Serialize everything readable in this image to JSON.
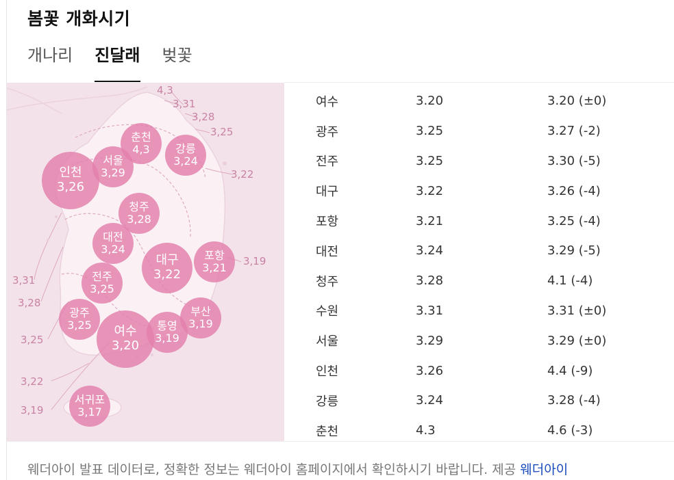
{
  "title": "봄꽃 개화시기",
  "tabs": [
    {
      "label": "개나리",
      "active": false
    },
    {
      "label": "진달래",
      "active": true
    },
    {
      "label": "벚꽃",
      "active": false
    }
  ],
  "map": {
    "background_color": "#f4e2ea",
    "bubble_color": "#e37fac",
    "bubbles": [
      {
        "name": "춘천",
        "date": "4,3"
      },
      {
        "name": "강릉",
        "date": "3,24"
      },
      {
        "name": "인천",
        "date": "3,26"
      },
      {
        "name": "서울",
        "date": "3,29"
      },
      {
        "name": "청주",
        "date": "3,28"
      },
      {
        "name": "대전",
        "date": "3,24"
      },
      {
        "name": "대구",
        "date": "3,22"
      },
      {
        "name": "포항",
        "date": "3,21"
      },
      {
        "name": "전주",
        "date": "3,25"
      },
      {
        "name": "광주",
        "date": "3,25"
      },
      {
        "name": "여수",
        "date": "3,20"
      },
      {
        "name": "통영",
        "date": "3,19"
      },
      {
        "name": "부산",
        "date": "3,19"
      },
      {
        "name": "서귀포",
        "date": "3,17"
      }
    ],
    "callouts": [
      "4,3",
      "3,31",
      "3,28",
      "3,25",
      "3,22",
      "3,19",
      "3,31",
      "3,28",
      "3,25",
      "3,22",
      "3,19"
    ]
  },
  "table": {
    "rows": [
      {
        "city": "여수",
        "date": "3.20",
        "prev": "3.20 (±0)"
      },
      {
        "city": "광주",
        "date": "3.25",
        "prev": "3.27 (-2)"
      },
      {
        "city": "전주",
        "date": "3.25",
        "prev": "3.30 (-5)"
      },
      {
        "city": "대구",
        "date": "3.22",
        "prev": "3.26 (-4)"
      },
      {
        "city": "포항",
        "date": "3.21",
        "prev": "3.25 (-4)"
      },
      {
        "city": "대전",
        "date": "3.24",
        "prev": "3.29 (-5)"
      },
      {
        "city": "청주",
        "date": "3.28",
        "prev": "4.1 (-4)"
      },
      {
        "city": "수원",
        "date": "3.31",
        "prev": "3.31 (±0)"
      },
      {
        "city": "서울",
        "date": "3.29",
        "prev": "3.29 (±0)"
      },
      {
        "city": "인천",
        "date": "3.26",
        "prev": "4.4 (-9)"
      },
      {
        "city": "강릉",
        "date": "3.24",
        "prev": "3.28 (-4)"
      },
      {
        "city": "춘천",
        "date": "4.3",
        "prev": "4.6 (-3)"
      }
    ]
  },
  "footer": {
    "text": "웨더아이 발표 데이터로, 정확한 정보는 웨더아이 홈페이지에서 확인하시기 바랍니다. 제공 ",
    "provider_link": "웨더아이"
  }
}
